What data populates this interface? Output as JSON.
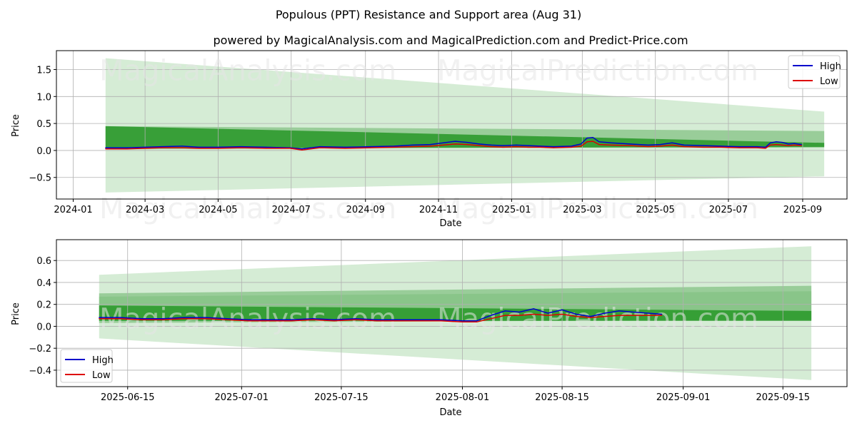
{
  "figure": {
    "suptitle": "Populous (PPT) Resistance and Support area (Aug 31)",
    "watermarks": [
      "MagicalAnalysis.com",
      "MagicalPrediction.com"
    ],
    "colors": {
      "high": "#0000cc",
      "low": "#dd0000",
      "band_dark": "#2e9a2e",
      "band_mid": "#7fc07f",
      "band_light": "#c7e6c7",
      "grid": "#b0b0b0",
      "watermark": "#e6e6e6"
    }
  },
  "chart_data": [
    {
      "type": "line",
      "title": "powered by MagicalAnalysis.com and MagicalPrediction.com and Predict-Price.com",
      "xlabel": "Date",
      "ylabel": "Price",
      "x_ticks": [
        "2024-01",
        "2024-03",
        "2024-05",
        "2024-07",
        "2024-09",
        "2024-11",
        "2025-01",
        "2025-03",
        "2025-05",
        "2025-07",
        "2025-09"
      ],
      "y_ticks": [
        "−0.5",
        "0.0",
        "0.5",
        "1.0",
        "1.5"
      ],
      "y_tick_values": [
        -0.5,
        0.0,
        0.5,
        1.0,
        1.5
      ],
      "xlim": [
        "2023-12-18",
        "2025-10-08"
      ],
      "ylim": [
        -0.9,
        1.85
      ],
      "grid": true,
      "legend": "top-right",
      "bands": [
        {
          "level": "light",
          "x": [
            "2024-01-28",
            "2025-09-19"
          ],
          "upper": [
            1.71,
            0.72
          ],
          "lower": [
            -0.78,
            -0.48
          ]
        },
        {
          "level": "mid",
          "x": [
            "2024-01-28",
            "2025-09-19"
          ],
          "upper": [
            0.45,
            0.36
          ],
          "lower": [
            0.02,
            0.08
          ]
        },
        {
          "level": "dark",
          "x": [
            "2024-01-28",
            "2025-09-19"
          ],
          "upper": [
            0.45,
            0.14
          ],
          "lower": [
            0.04,
            0.06
          ]
        }
      ],
      "series": [
        {
          "name": "High",
          "x": [
            "2024-01-28",
            "2024-02-15",
            "2024-03-01",
            "2024-03-15",
            "2024-04-01",
            "2024-04-15",
            "2024-05-01",
            "2024-05-20",
            "2024-06-10",
            "2024-06-30",
            "2024-07-10",
            "2024-07-25",
            "2024-08-15",
            "2024-09-05",
            "2024-09-25",
            "2024-10-10",
            "2024-10-25",
            "2024-11-05",
            "2024-11-15",
            "2024-11-25",
            "2024-12-05",
            "2024-12-15",
            "2024-12-25",
            "2025-01-05",
            "2025-01-15",
            "2025-01-25",
            "2025-02-05",
            "2025-02-20",
            "2025-02-28",
            "2025-03-05",
            "2025-03-10",
            "2025-03-15",
            "2025-03-25",
            "2025-04-10",
            "2025-04-25",
            "2025-05-05",
            "2025-05-15",
            "2025-05-25",
            "2025-06-10",
            "2025-06-25",
            "2025-07-10",
            "2025-07-25",
            "2025-08-01",
            "2025-08-05",
            "2025-08-10",
            "2025-08-15",
            "2025-08-20",
            "2025-08-25",
            "2025-08-31"
          ],
          "values": [
            0.05,
            0.05,
            0.06,
            0.07,
            0.08,
            0.06,
            0.06,
            0.07,
            0.06,
            0.05,
            0.03,
            0.07,
            0.06,
            0.07,
            0.08,
            0.1,
            0.11,
            0.14,
            0.17,
            0.15,
            0.12,
            0.1,
            0.09,
            0.1,
            0.09,
            0.08,
            0.07,
            0.08,
            0.12,
            0.23,
            0.24,
            0.16,
            0.14,
            0.12,
            0.1,
            0.11,
            0.14,
            0.1,
            0.09,
            0.08,
            0.07,
            0.07,
            0.06,
            0.14,
            0.16,
            0.15,
            0.12,
            0.13,
            0.11
          ]
        },
        {
          "name": "Low",
          "x": [
            "2024-01-28",
            "2024-02-15",
            "2024-03-01",
            "2024-03-15",
            "2024-04-01",
            "2024-04-15",
            "2024-05-01",
            "2024-05-20",
            "2024-06-10",
            "2024-06-30",
            "2024-07-10",
            "2024-07-25",
            "2024-08-15",
            "2024-09-05",
            "2024-09-25",
            "2024-10-10",
            "2024-10-25",
            "2024-11-05",
            "2024-11-15",
            "2024-11-25",
            "2024-12-05",
            "2024-12-15",
            "2024-12-25",
            "2025-01-05",
            "2025-01-15",
            "2025-01-25",
            "2025-02-05",
            "2025-02-20",
            "2025-02-28",
            "2025-03-05",
            "2025-03-10",
            "2025-03-15",
            "2025-03-25",
            "2025-04-10",
            "2025-04-25",
            "2025-05-05",
            "2025-05-15",
            "2025-05-25",
            "2025-06-10",
            "2025-06-25",
            "2025-07-10",
            "2025-07-25",
            "2025-08-01",
            "2025-08-05",
            "2025-08-10",
            "2025-08-15",
            "2025-08-20",
            "2025-08-25",
            "2025-08-31"
          ],
          "values": [
            0.03,
            0.03,
            0.04,
            0.05,
            0.05,
            0.04,
            0.04,
            0.05,
            0.04,
            0.04,
            0.01,
            0.05,
            0.04,
            0.05,
            0.06,
            0.07,
            0.08,
            0.1,
            0.12,
            0.11,
            0.09,
            0.07,
            0.06,
            0.07,
            0.06,
            0.06,
            0.05,
            0.06,
            0.08,
            0.16,
            0.17,
            0.11,
            0.1,
            0.09,
            0.07,
            0.08,
            0.1,
            0.07,
            0.06,
            0.06,
            0.05,
            0.05,
            0.04,
            0.1,
            0.11,
            0.1,
            0.09,
            0.1,
            0.09
          ]
        }
      ]
    },
    {
      "type": "line",
      "title": "",
      "xlabel": "Date",
      "ylabel": "Price",
      "x_ticks": [
        "2025-06-15",
        "2025-07-01",
        "2025-07-15",
        "2025-08-01",
        "2025-08-15",
        "2025-09-01",
        "2025-09-15"
      ],
      "y_ticks": [
        "−0.4",
        "−0.2",
        "0.0",
        "0.2",
        "0.4",
        "0.6"
      ],
      "y_tick_values": [
        -0.4,
        -0.2,
        0.0,
        0.2,
        0.4,
        0.6
      ],
      "xlim": [
        "2025-06-05",
        "2025-09-24"
      ],
      "ylim": [
        -0.55,
        0.79
      ],
      "grid": true,
      "legend": "bottom-left",
      "bands": [
        {
          "level": "light",
          "x": [
            "2025-06-11",
            "2025-09-19"
          ],
          "upper": [
            0.47,
            0.73
          ],
          "lower": [
            -0.11,
            -0.49
          ]
        },
        {
          "level": "mid",
          "x": [
            "2025-06-11",
            "2025-09-19"
          ],
          "upper": [
            0.3,
            0.37
          ],
          "lower": [
            0.03,
            0.06
          ]
        },
        {
          "level": "mid2",
          "x": [
            "2025-06-11",
            "2025-09-19"
          ],
          "upper": [
            0.27,
            0.32
          ],
          "lower": [
            0.05,
            0.06
          ]
        },
        {
          "level": "dark",
          "x": [
            "2025-06-11",
            "2025-09-19"
          ],
          "upper": [
            0.19,
            0.14
          ],
          "lower": [
            0.05,
            0.05
          ]
        }
      ],
      "series": [
        {
          "name": "High",
          "x": [
            "2025-06-11",
            "2025-06-14",
            "2025-06-17",
            "2025-06-20",
            "2025-06-23",
            "2025-06-26",
            "2025-06-29",
            "2025-07-02",
            "2025-07-05",
            "2025-07-08",
            "2025-07-11",
            "2025-07-14",
            "2025-07-17",
            "2025-07-20",
            "2025-07-23",
            "2025-07-26",
            "2025-07-29",
            "2025-08-01",
            "2025-08-03",
            "2025-08-05",
            "2025-08-07",
            "2025-08-09",
            "2025-08-11",
            "2025-08-13",
            "2025-08-15",
            "2025-08-17",
            "2025-08-19",
            "2025-08-21",
            "2025-08-23",
            "2025-08-25",
            "2025-08-27",
            "2025-08-29"
          ],
          "values": [
            0.08,
            0.08,
            0.07,
            0.07,
            0.08,
            0.08,
            0.07,
            0.06,
            0.06,
            0.06,
            0.07,
            0.06,
            0.07,
            0.06,
            0.06,
            0.06,
            0.06,
            0.05,
            0.05,
            0.1,
            0.14,
            0.13,
            0.16,
            0.12,
            0.15,
            0.11,
            0.09,
            0.12,
            0.14,
            0.13,
            0.12,
            0.11
          ]
        },
        {
          "name": "Low",
          "x": [
            "2025-06-11",
            "2025-06-14",
            "2025-06-17",
            "2025-06-20",
            "2025-06-23",
            "2025-06-26",
            "2025-06-29",
            "2025-07-02",
            "2025-07-05",
            "2025-07-08",
            "2025-07-11",
            "2025-07-14",
            "2025-07-17",
            "2025-07-20",
            "2025-07-23",
            "2025-07-26",
            "2025-07-29",
            "2025-08-01",
            "2025-08-03",
            "2025-08-05",
            "2025-08-07",
            "2025-08-09",
            "2025-08-11",
            "2025-08-13",
            "2025-08-15",
            "2025-08-17",
            "2025-08-19",
            "2025-08-21",
            "2025-08-23",
            "2025-08-25",
            "2025-08-27",
            "2025-08-29"
          ],
          "values": [
            0.07,
            0.07,
            0.06,
            0.06,
            0.07,
            0.07,
            0.06,
            0.05,
            0.05,
            0.05,
            0.06,
            0.05,
            0.06,
            0.05,
            0.05,
            0.05,
            0.05,
            0.04,
            0.04,
            0.07,
            0.1,
            0.1,
            0.11,
            0.1,
            0.11,
            0.09,
            0.08,
            0.09,
            0.1,
            0.1,
            0.1,
            0.1
          ]
        }
      ]
    }
  ]
}
